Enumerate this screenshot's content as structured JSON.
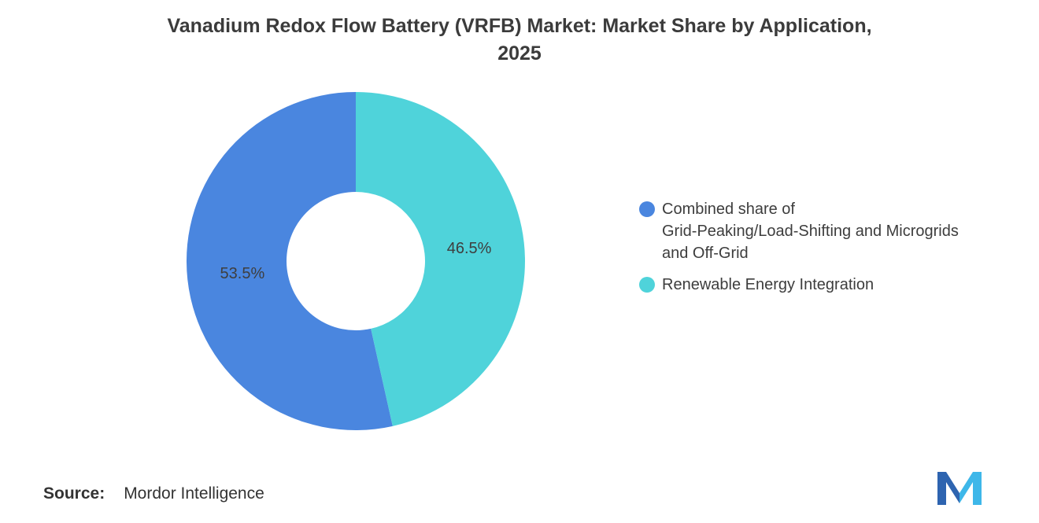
{
  "title": "Vanadium Redox Flow Battery (VRFB) Market: Market Share by Application,\n2025",
  "chart_data": {
    "type": "pie",
    "donut": true,
    "title": "Vanadium Redox Flow Battery (VRFB) Market: Market Share by Application, 2025",
    "unit": "%",
    "legend_position": "right",
    "start_angle_deg": 0,
    "direction": "blue slice sweeps left from 12 o'clock, teal slice fills right side",
    "segments": [
      {
        "label": "Combined share of\nGrid-Peaking/Load-Shifting and Microgrids\nand Off-Grid",
        "value": 53.5,
        "display": "53.5%",
        "color": "#4A86DF"
      },
      {
        "label": "Renewable Energy Integration",
        "value": 46.5,
        "display": "46.5%",
        "color": "#4FD3DA"
      }
    ],
    "label_color": "#3e3e3e"
  },
  "source": {
    "label": "Source:",
    "value": "Mordor Intelligence"
  },
  "logo": {
    "name": "mordor-intelligence-logo",
    "dark": "#2E64B0",
    "light": "#3EB7E9"
  }
}
